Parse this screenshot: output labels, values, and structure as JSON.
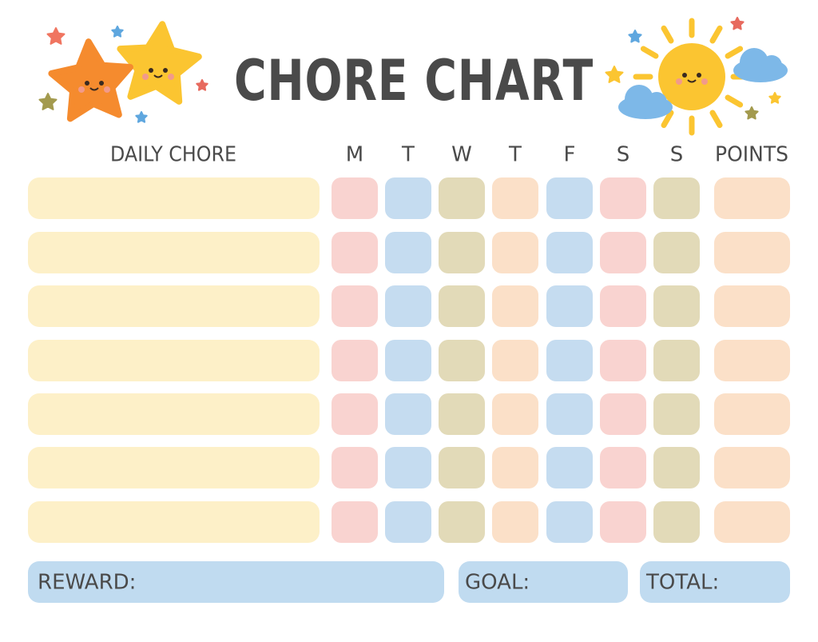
{
  "title": "CHORE CHART",
  "header": {
    "chore": "DAILY CHORE",
    "days": [
      "M",
      "T",
      "W",
      "T",
      "F",
      "S",
      "S"
    ],
    "points": "POINTS"
  },
  "footer": {
    "reward": "REWARD:",
    "goal": "GOAL:",
    "total": "TOTAL:"
  }
}
